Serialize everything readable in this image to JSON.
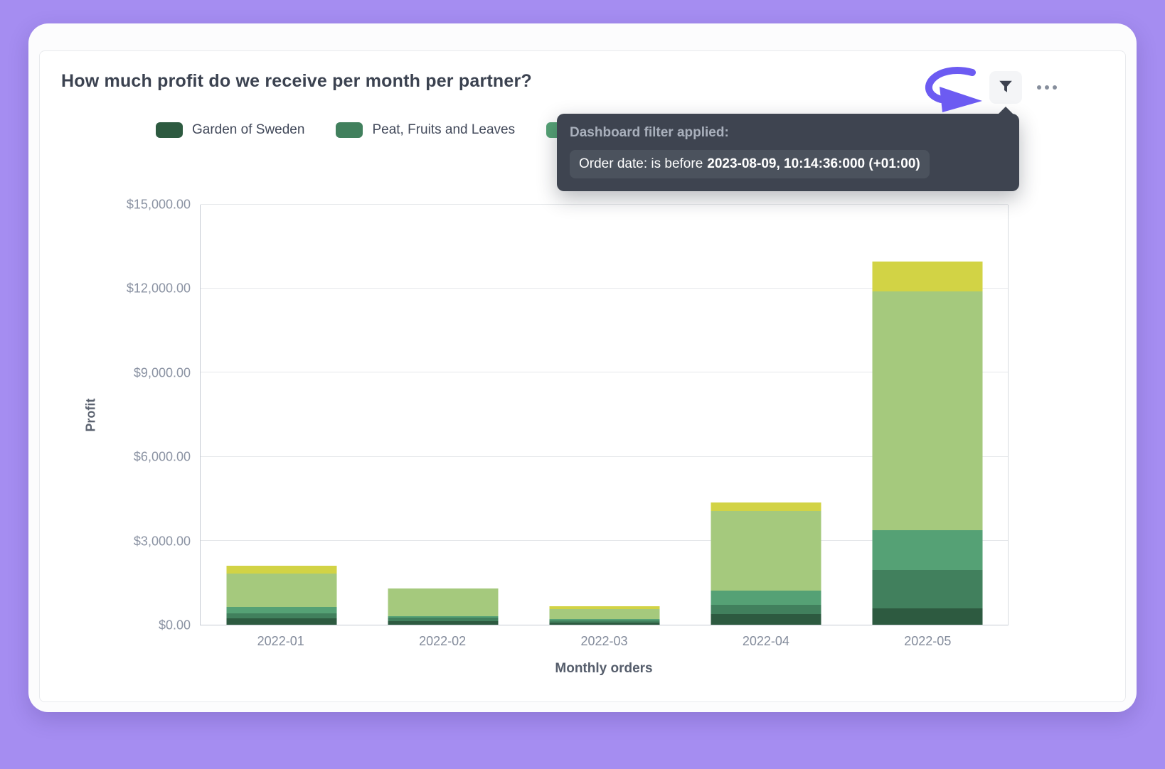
{
  "colors": {
    "page_background": "#a58df1",
    "card_background": "#ffffff",
    "tooltip_background": "#3e4450",
    "annotation_arrow": "#6c5bf2",
    "grid_line": "#e5e7ea",
    "axis_line": "#c6cbd3"
  },
  "card": {
    "title": "How much profit do we receive per month per partner?"
  },
  "icons": {
    "filter": "funnel-icon",
    "menu": "ellipsis-icon",
    "annotation": "curved-arrow-icon"
  },
  "tooltip": {
    "heading": "Dashboard filter applied:",
    "filter_label": "Order date: is before",
    "filter_value": "2023-08-09, 10:14:36:000 (+01:00)"
  },
  "legend": {
    "items": [
      {
        "label": "Garden of Sweden",
        "color": "#2d5a40"
      },
      {
        "label": "Peat, Fruits and Leaves",
        "color": "#41805d"
      },
      {
        "label": "",
        "color": "#55a175"
      }
    ]
  },
  "chart_data": {
    "type": "bar",
    "stacked": true,
    "title": "How much profit do we receive per month per partner?",
    "xlabel": "Monthly orders",
    "ylabel": "Profit",
    "ylim": [
      0,
      15000
    ],
    "grid": true,
    "legend_position": "top",
    "categories": [
      "2022-01",
      "2022-02",
      "2022-03",
      "2022-04",
      "2022-05"
    ],
    "yticks": [
      {
        "value": 0,
        "label": "$0.00"
      },
      {
        "value": 3000,
        "label": "$3,000.00"
      },
      {
        "value": 6000,
        "label": "$6,000.00"
      },
      {
        "value": 9000,
        "label": "$9,000.00"
      },
      {
        "value": 12000,
        "label": "$12,000.00"
      },
      {
        "value": 15000,
        "label": "$15,000.00"
      }
    ],
    "series": [
      {
        "name": "Garden of Sweden",
        "color": "#2d5a40",
        "values": [
          230,
          130,
          80,
          380,
          580
        ]
      },
      {
        "name": "Peat, Fruits and Leaves",
        "color": "#41805d",
        "values": [
          180,
          120,
          70,
          330,
          1370
        ]
      },
      {
        "name": "",
        "color": "#55a175",
        "values": [
          220,
          60,
          60,
          500,
          1420
        ]
      },
      {
        "name": "",
        "color": "#a5c97d",
        "values": [
          1200,
          990,
          340,
          2840,
          8520
        ]
      },
      {
        "name": "",
        "color": "#d2d345",
        "values": [
          270,
          0,
          100,
          300,
          1060
        ]
      }
    ],
    "totals": [
      2100,
      1300,
      650,
      4350,
      12950
    ]
  }
}
